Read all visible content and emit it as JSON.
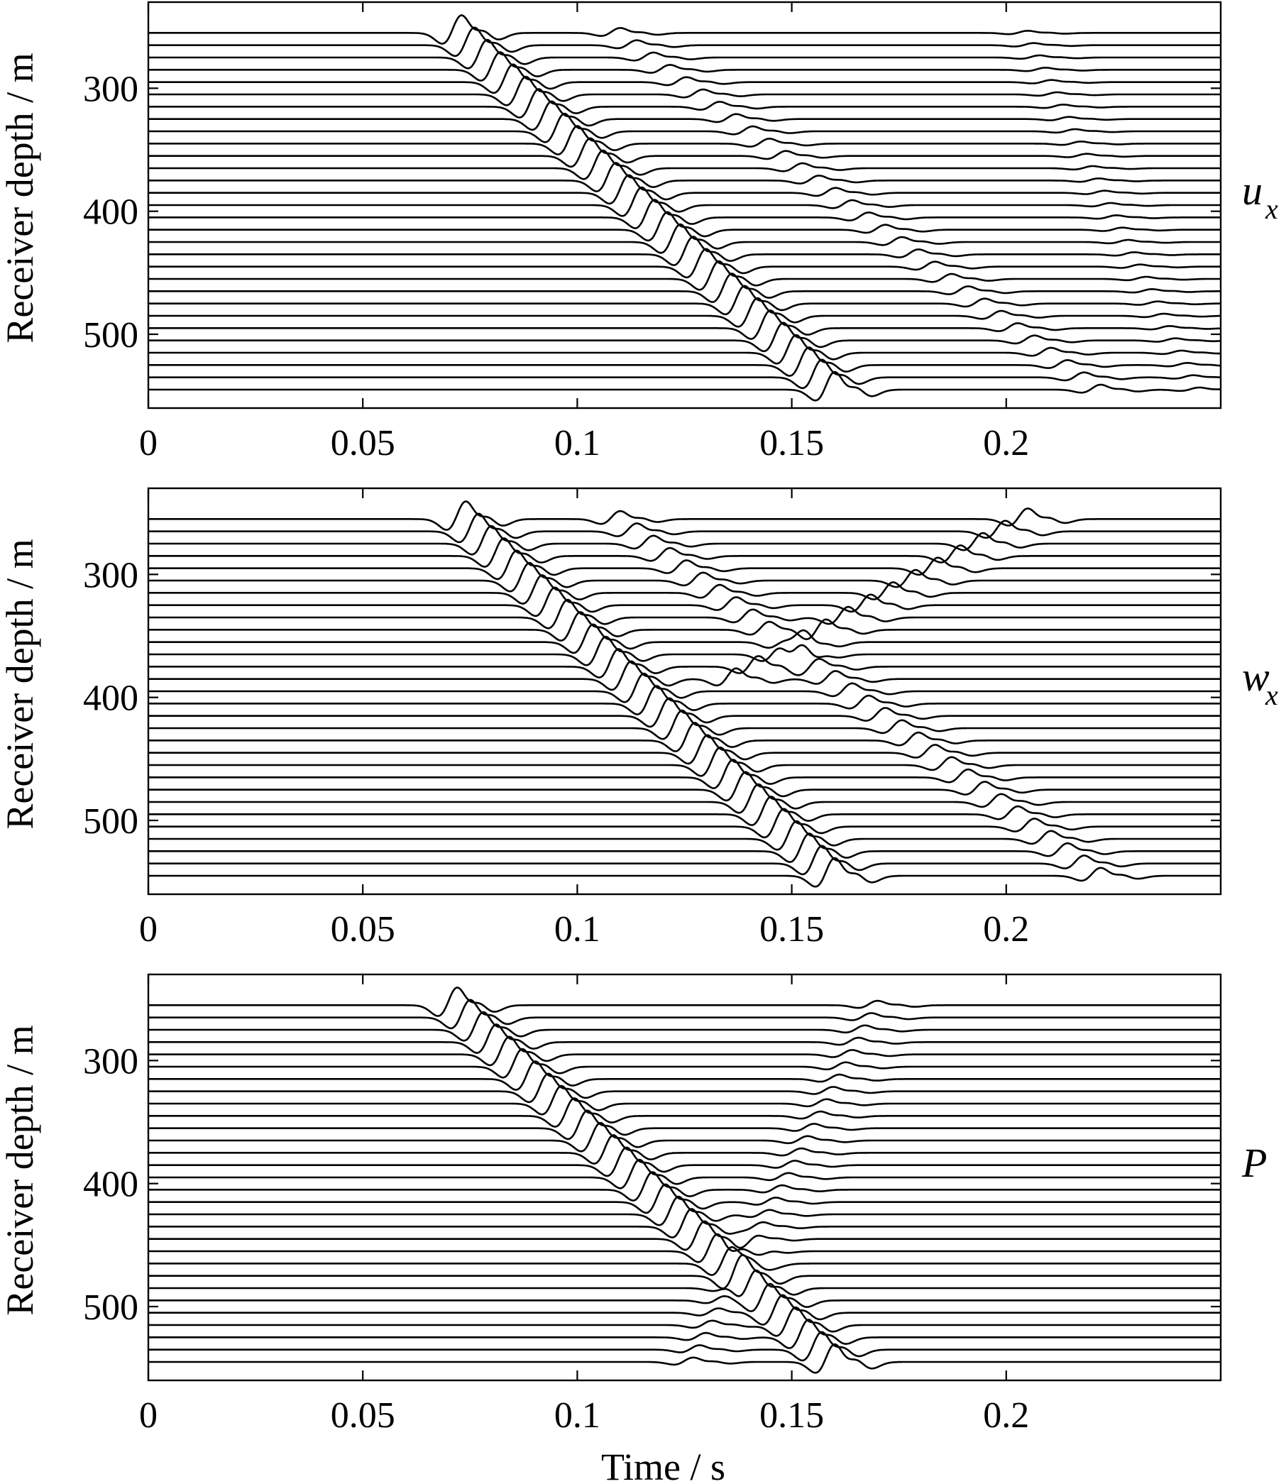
{
  "chart_data": [
    {
      "type": "line",
      "panel_label": "u",
      "panel_label_sub": "x",
      "xlabel": "",
      "ylabel": "Receiver depth / m",
      "xlim": [
        0,
        0.25
      ],
      "ylim": [
        230,
        560
      ],
      "xticks": [
        "0",
        "0.05",
        "0.1",
        "0.15",
        "0.2"
      ],
      "yticks": [
        "300",
        "400",
        "500"
      ],
      "receiver_depths": [
        255,
        265,
        275,
        285,
        295,
        305,
        315,
        325,
        335,
        345,
        355,
        365,
        375,
        385,
        395,
        405,
        415,
        425,
        435,
        445,
        455,
        465,
        475,
        485,
        495,
        505,
        515,
        525,
        535,
        545
      ],
      "events": [
        {
          "kind": "direct",
          "t_top": 0.073,
          "t_bottom": 0.16,
          "amp": 1.0
        },
        {
          "kind": "upgoing",
          "t_top": 0.11,
          "t_bottom": 0.222,
          "amp": 0.28
        },
        {
          "kind": "downgoing_late",
          "t_top": 0.205,
          "t_bottom": 0.245,
          "amp": 0.12
        }
      ]
    },
    {
      "type": "line",
      "panel_label": "w",
      "panel_label_sub": "x",
      "xlabel": "",
      "ylabel": "Receiver depth / m",
      "xlim": [
        0,
        0.25
      ],
      "ylim": [
        230,
        560
      ],
      "xticks": [
        "0",
        "0.05",
        "0.1",
        "0.15",
        "0.2"
      ],
      "yticks": [
        "300",
        "400",
        "500"
      ],
      "receiver_depths": [
        255,
        265,
        275,
        285,
        295,
        305,
        315,
        325,
        335,
        345,
        355,
        365,
        375,
        385,
        395,
        405,
        415,
        425,
        435,
        445,
        455,
        465,
        475,
        485,
        495,
        505,
        515,
        525,
        535,
        545
      ],
      "events": [
        {
          "kind": "direct",
          "t_top": 0.074,
          "t_bottom": 0.16,
          "amp": 1.0
        },
        {
          "kind": "upgoing",
          "t_top": 0.11,
          "t_bottom": 0.222,
          "amp": 0.45
        },
        {
          "kind": "v_reflection",
          "t_top": 0.205,
          "t_apex": 0.137,
          "apex_depth": 385,
          "amp": 0.6
        }
      ]
    },
    {
      "type": "line",
      "panel_label": "P",
      "panel_label_sub": "",
      "xlabel": "Time / s",
      "ylabel": "Receiver depth / m",
      "xlim": [
        0,
        0.25
      ],
      "ylim": [
        230,
        560
      ],
      "xticks": [
        "0",
        "0.05",
        "0.1",
        "0.15",
        "0.2"
      ],
      "yticks": [
        "300",
        "400",
        "500"
      ],
      "receiver_depths": [
        255,
        265,
        275,
        285,
        295,
        305,
        315,
        325,
        335,
        345,
        355,
        365,
        375,
        385,
        395,
        405,
        415,
        425,
        435,
        445,
        455,
        465,
        475,
        485,
        495,
        505,
        515,
        525,
        535,
        545
      ],
      "events": [
        {
          "kind": "direct",
          "t_top": 0.072,
          "t_bottom": 0.16,
          "amp": 1.0
        },
        {
          "kind": "upgoing",
          "t_top": 0.17,
          "t_bottom": 0.127,
          "amp": 0.25
        }
      ]
    }
  ]
}
